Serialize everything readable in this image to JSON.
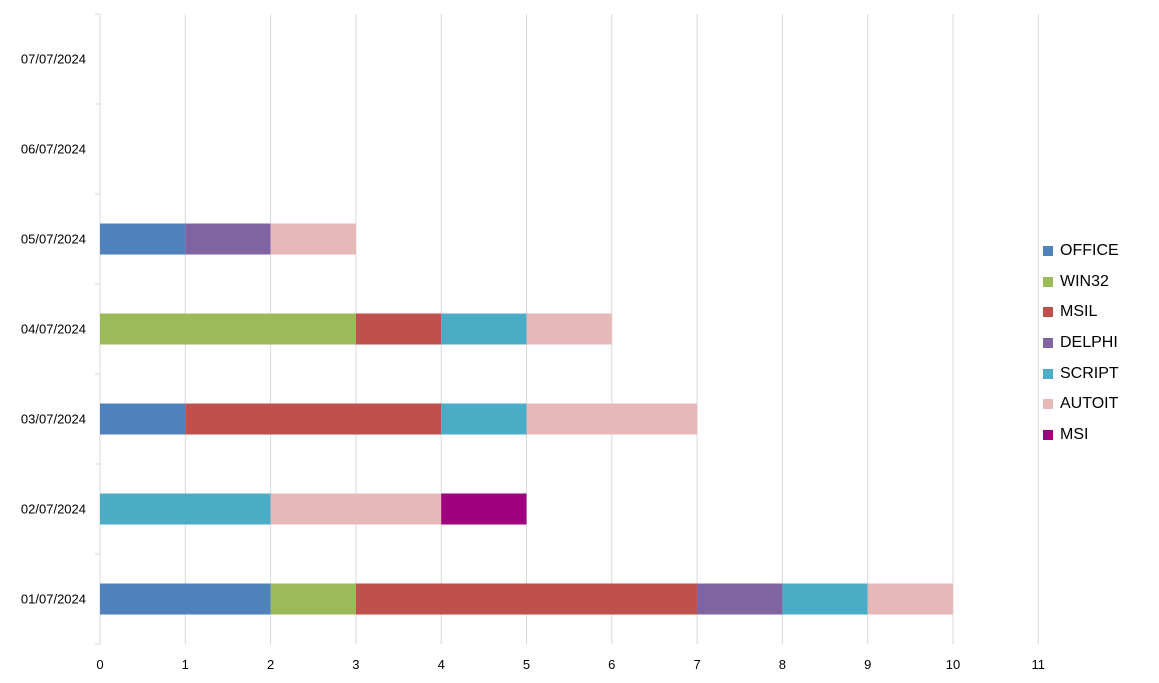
{
  "chart_data": {
    "type": "bar",
    "orientation": "horizontal",
    "stacked": true,
    "title": "",
    "xlabel": "",
    "ylabel": "",
    "xlim": [
      0,
      11
    ],
    "x_ticks": [
      0,
      1,
      2,
      3,
      4,
      5,
      6,
      7,
      8,
      9,
      10,
      11
    ],
    "grid": "vertical",
    "legend_position": "right",
    "categories": [
      "01/07/2024",
      "02/07/2024",
      "03/07/2024",
      "04/07/2024",
      "05/07/2024",
      "06/07/2024",
      "07/07/2024"
    ],
    "series": [
      {
        "name": "OFFICE",
        "color": "#4f81bd",
        "values": [
          2,
          0,
          1,
          0,
          1,
          0,
          0
        ]
      },
      {
        "name": "WIN32",
        "color": "#9bbb59",
        "values": [
          1,
          0,
          0,
          3,
          0,
          0,
          0
        ]
      },
      {
        "name": "MSIL",
        "color": "#c0504d",
        "values": [
          4,
          0,
          3,
          1,
          0,
          0,
          0
        ]
      },
      {
        "name": "DELPHI",
        "color": "#8064a2",
        "values": [
          1,
          0,
          0,
          0,
          1,
          0,
          0
        ]
      },
      {
        "name": "SCRIPT",
        "color": "#4bacc6",
        "values": [
          1,
          2,
          1,
          1,
          0,
          0,
          0
        ]
      },
      {
        "name": "AUTOIT",
        "color": "#e6b9b8",
        "values": [
          1,
          2,
          2,
          1,
          1,
          0,
          0
        ]
      },
      {
        "name": "MSI",
        "color": "#9e007e",
        "values": [
          0,
          1,
          0,
          0,
          0,
          0,
          0
        ]
      }
    ]
  }
}
